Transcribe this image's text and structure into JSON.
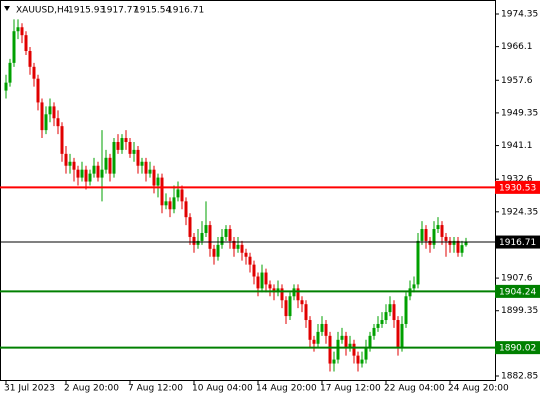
{
  "chart_data": {
    "type": "candlestick",
    "header": {
      "symbol": "XAUUSD,H4",
      "ohlc": [
        1915.93,
        1917.77,
        1915.54,
        1916.71
      ]
    },
    "categories": [
      "31 Jul 2023",
      null,
      null,
      null,
      null,
      null,
      null,
      null,
      null,
      null,
      null,
      null,
      null,
      null,
      null,
      "2 Aug 20:00",
      null,
      null,
      null,
      null,
      null,
      null,
      null,
      null,
      null,
      null,
      null,
      null,
      null,
      null,
      null,
      "7 Aug 12:00",
      null,
      null,
      null,
      null,
      null,
      null,
      null,
      null,
      null,
      null,
      null,
      null,
      null,
      null,
      null,
      "10 Aug 04:00",
      null,
      null,
      null,
      null,
      null,
      null,
      null,
      null,
      null,
      null,
      null,
      null,
      null,
      null,
      null,
      "14 Aug 20:00",
      null,
      null,
      null,
      null,
      null,
      null,
      null,
      null,
      null,
      null,
      null,
      null,
      null,
      null,
      null,
      "17 Aug 12:00",
      null,
      null,
      null,
      null,
      null,
      null,
      null,
      null,
      null,
      null,
      null,
      null,
      null,
      null,
      null,
      "22 Aug 04:00",
      null,
      null,
      null,
      null,
      null,
      null,
      null,
      null,
      null,
      null,
      null,
      null,
      null,
      null,
      null,
      "24 Aug 20:00",
      null,
      null,
      null,
      null
    ],
    "open": [
      1955,
      1957,
      1962,
      1970,
      1971,
      1969,
      1965,
      1961,
      1958,
      1952,
      1945,
      1949,
      1951,
      1948,
      1946,
      1939,
      1936,
      1937,
      1935,
      1933,
      1935,
      1932,
      1934,
      1936,
      1933,
      1935,
      1938,
      1934,
      1942,
      1940,
      1943,
      1942,
      1939,
      1940,
      1936,
      1937,
      1934,
      1935,
      1931,
      1933,
      1926,
      1927,
      1925,
      1928,
      1930,
      1927,
      1923,
      1918,
      1916,
      1917,
      1919,
      1921,
      1915,
      1913,
      1916,
      1918,
      1920,
      1917,
      1915,
      1916,
      1914,
      1913,
      1911,
      1908,
      1905,
      1909,
      1906,
      1905,
      1904,
      1905,
      1902,
      1898,
      1903,
      1905,
      1902,
      1901,
      1897,
      1892,
      1891,
      1894,
      1896,
      1893,
      1886,
      1887,
      1892,
      1893,
      1890,
      1891,
      1888,
      1886,
      1887,
      1890,
      1893,
      1895,
      1896,
      1897,
      1899,
      1901,
      1897,
      1890,
      1896,
      1903,
      1905,
      1906,
      1917,
      1920,
      1917,
      1916,
      1920,
      1921,
      1918,
      1917,
      1916,
      1917,
      1914,
      1915.93
    ],
    "high": [
      1959,
      1963,
      1973,
      1973,
      1972,
      1970,
      1966,
      1962,
      1959,
      1953,
      1951,
      1953,
      1952,
      1950,
      1947,
      1941,
      1939,
      1938,
      1936,
      1937,
      1936,
      1935,
      1938,
      1937,
      1945,
      1940,
      1939,
      1943,
      1944,
      1944,
      1945,
      1943,
      1942,
      1941,
      1938,
      1938,
      1937,
      1936,
      1934,
      1934,
      1929,
      1928,
      1931,
      1932,
      1931,
      1928,
      1924,
      1919,
      1920,
      1922,
      1927,
      1922,
      1916,
      1918,
      1920,
      1921,
      1921,
      1918,
      1918,
      1917,
      1915,
      1914,
      1912,
      1909,
      1911,
      1910,
      1907,
      1906,
      1907,
      1906,
      1903,
      1904,
      1906,
      1906,
      1903,
      1902,
      1898,
      1893,
      1896,
      1898,
      1897,
      1894,
      1889,
      1894,
      1895,
      1894,
      1893,
      1892,
      1889,
      1889,
      1892,
      1894,
      1896,
      1898,
      1899,
      1901,
      1903,
      1902,
      1898,
      1898,
      1904,
      1907,
      1908,
      1919,
      1922,
      1921,
      1918,
      1922,
      1923,
      1922,
      1919,
      1918,
      1918,
      1918,
      1917,
      1917.77
    ],
    "low": [
      1953,
      1956,
      1961,
      1968,
      1967,
      1964,
      1959,
      1956,
      1950,
      1943,
      1944,
      1947,
      1946,
      1944,
      1937,
      1934,
      1934,
      1932,
      1931,
      1932,
      1930,
      1931,
      1933,
      1932,
      1927,
      1934,
      1932,
      1933,
      1939,
      1939,
      1940,
      1938,
      1937,
      1934,
      1934,
      1932,
      1933,
      1929,
      1928,
      1924,
      1925,
      1923,
      1924,
      1927,
      1925,
      1921,
      1916,
      1914,
      1915,
      1916,
      1918,
      1913,
      1911,
      1912,
      1915,
      1917,
      1915,
      1913,
      1914,
      1912,
      1911,
      1909,
      1906,
      1903,
      1904,
      1904,
      1903,
      1902,
      1903,
      1900,
      1896,
      1897,
      1902,
      1900,
      1899,
      1895,
      1890,
      1889,
      1890,
      1893,
      1891,
      1884,
      1884,
      1886,
      1891,
      1888,
      1889,
      1886,
      1884,
      1885,
      1886,
      1889,
      1892,
      1894,
      1895,
      1896,
      1898,
      1895,
      1888,
      1889,
      1895,
      1902,
      1904,
      1905,
      1916,
      1915,
      1914,
      1915,
      1919,
      1916,
      1913,
      1914,
      1914,
      1913,
      1913,
      1915.54
    ],
    "close": [
      1957,
      1962,
      1970,
      1971,
      1969,
      1965,
      1961,
      1958,
      1952,
      1945,
      1949,
      1951,
      1948,
      1946,
      1939,
      1936,
      1937,
      1935,
      1933,
      1935,
      1932,
      1934,
      1936,
      1933,
      1935,
      1938,
      1934,
      1942,
      1940,
      1943,
      1942,
      1939,
      1940,
      1936,
      1937,
      1934,
      1935,
      1931,
      1933,
      1926,
      1927,
      1925,
      1928,
      1930,
      1927,
      1923,
      1918,
      1916,
      1917,
      1919,
      1921,
      1915,
      1913,
      1916,
      1918,
      1920,
      1917,
      1915,
      1916,
      1914,
      1913,
      1911,
      1908,
      1905,
      1909,
      1906,
      1905,
      1904,
      1905,
      1902,
      1898,
      1903,
      1905,
      1902,
      1901,
      1897,
      1892,
      1891,
      1894,
      1896,
      1893,
      1886,
      1887,
      1892,
      1893,
      1890,
      1891,
      1888,
      1886,
      1887,
      1890,
      1893,
      1895,
      1896,
      1897,
      1899,
      1901,
      1897,
      1890,
      1896,
      1903,
      1905,
      1906,
      1917,
      1920,
      1917,
      1916,
      1920,
      1921,
      1918,
      1917,
      1916,
      1917,
      1914,
      1915.93,
      1916.71
    ],
    "up_color": "#00a000",
    "down_color": "#e00000",
    "ylim": [
      1881.84,
      1977.89
    ],
    "yticks": [
      1974.35,
      1966.1,
      1957.6,
      1949.35,
      1941.1,
      1932.6,
      1924.35,
      1907.6,
      1899.35,
      1882.85
    ],
    "levels": [
      {
        "value": 1930.53,
        "color": "#ff0000"
      },
      {
        "value": 1916.71,
        "color": "#000000"
      },
      {
        "value": 1904.24,
        "color": "#008000"
      },
      {
        "value": 1890.02,
        "color": "#008000"
      }
    ]
  }
}
